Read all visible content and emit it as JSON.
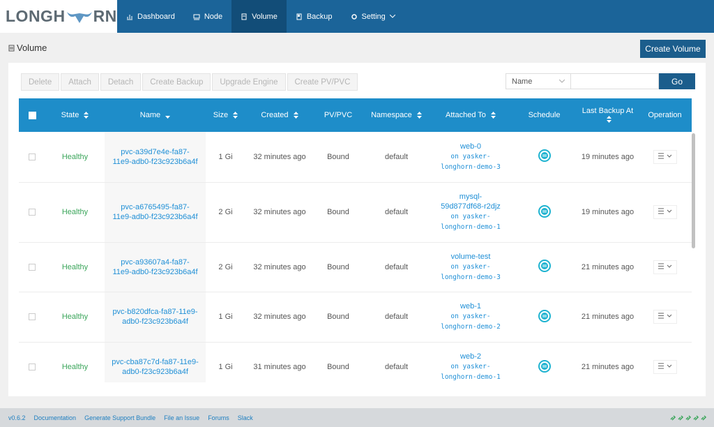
{
  "logo": {
    "left": "LONGH",
    "right": "RN"
  },
  "nav": [
    {
      "label": "Dashboard"
    },
    {
      "label": "Node"
    },
    {
      "label": "Volume",
      "active": true
    },
    {
      "label": "Backup"
    },
    {
      "label": "Setting"
    }
  ],
  "page_title": "Volume",
  "create_button": "Create Volume",
  "actions": [
    "Delete",
    "Attach",
    "Detach",
    "Create Backup",
    "Upgrade Engine",
    "Create PV/PVC"
  ],
  "search": {
    "field": "Name",
    "button": "Go"
  },
  "table": {
    "columns": [
      {
        "label": "State",
        "sortable": true
      },
      {
        "label": "Name",
        "sortable": true,
        "sorted": "desc"
      },
      {
        "label": "Size",
        "sortable": true
      },
      {
        "label": "Created",
        "sortable": true
      },
      {
        "label": "PV/PVC",
        "sortable": false
      },
      {
        "label": "Namespace",
        "sortable": true
      },
      {
        "label": "Attached To",
        "sortable": true
      },
      {
        "label": "Schedule",
        "sortable": false
      },
      {
        "label": "Last Backup At",
        "sortable": true
      },
      {
        "label": "Operation",
        "sortable": false
      }
    ],
    "rows": [
      {
        "state": "Healthy",
        "name": "pvc-a39d7e4e-fa87-11e9-adb0-f23c923b6a4f",
        "size": "1 Gi",
        "created": "32 minutes ago",
        "pv_pvc": "Bound",
        "namespace": "default",
        "attached_to": [
          "web-0",
          "on yasker-longhorn-demo-3"
        ],
        "last_backup_at": "19 minutes ago"
      },
      {
        "state": "Healthy",
        "name": "pvc-a6765495-fa87-11e9-adb0-f23c923b6a4f",
        "size": "2 Gi",
        "created": "32 minutes ago",
        "pv_pvc": "Bound",
        "namespace": "default",
        "attached_to": [
          "mysql-59d877df68-r2djz",
          "on yasker-longhorn-demo-1"
        ],
        "last_backup_at": "19 minutes ago"
      },
      {
        "state": "Healthy",
        "name": "pvc-a93607a4-fa87-11e9-adb0-f23c923b6a4f",
        "size": "2 Gi",
        "created": "32 minutes ago",
        "pv_pvc": "Bound",
        "namespace": "default",
        "attached_to": [
          "volume-test",
          "on yasker-longhorn-demo-3"
        ],
        "last_backup_at": "21 minutes ago"
      },
      {
        "state": "Healthy",
        "name": "pvc-b820dfca-fa87-11e9-adb0-f23c923b6a4f",
        "size": "1 Gi",
        "created": "32 minutes ago",
        "pv_pvc": "Bound",
        "namespace": "default",
        "attached_to": [
          "web-1",
          "on yasker-longhorn-demo-2"
        ],
        "last_backup_at": "21 minutes ago"
      },
      {
        "state": "Healthy",
        "name": "pvc-cba87c7d-fa87-11e9-adb0-f23c923b6a4f",
        "size": "1 Gi",
        "created": "31 minutes ago",
        "pv_pvc": "Bound",
        "namespace": "default",
        "attached_to": [
          "web-2",
          "on yasker-longhorn-demo-1"
        ],
        "last_backup_at": "21 minutes ago"
      }
    ]
  },
  "footer": {
    "links": [
      "v0.6.2",
      "Documentation",
      "Generate Support Bundle",
      "File an Issue",
      "Forums",
      "Slack"
    ]
  }
}
